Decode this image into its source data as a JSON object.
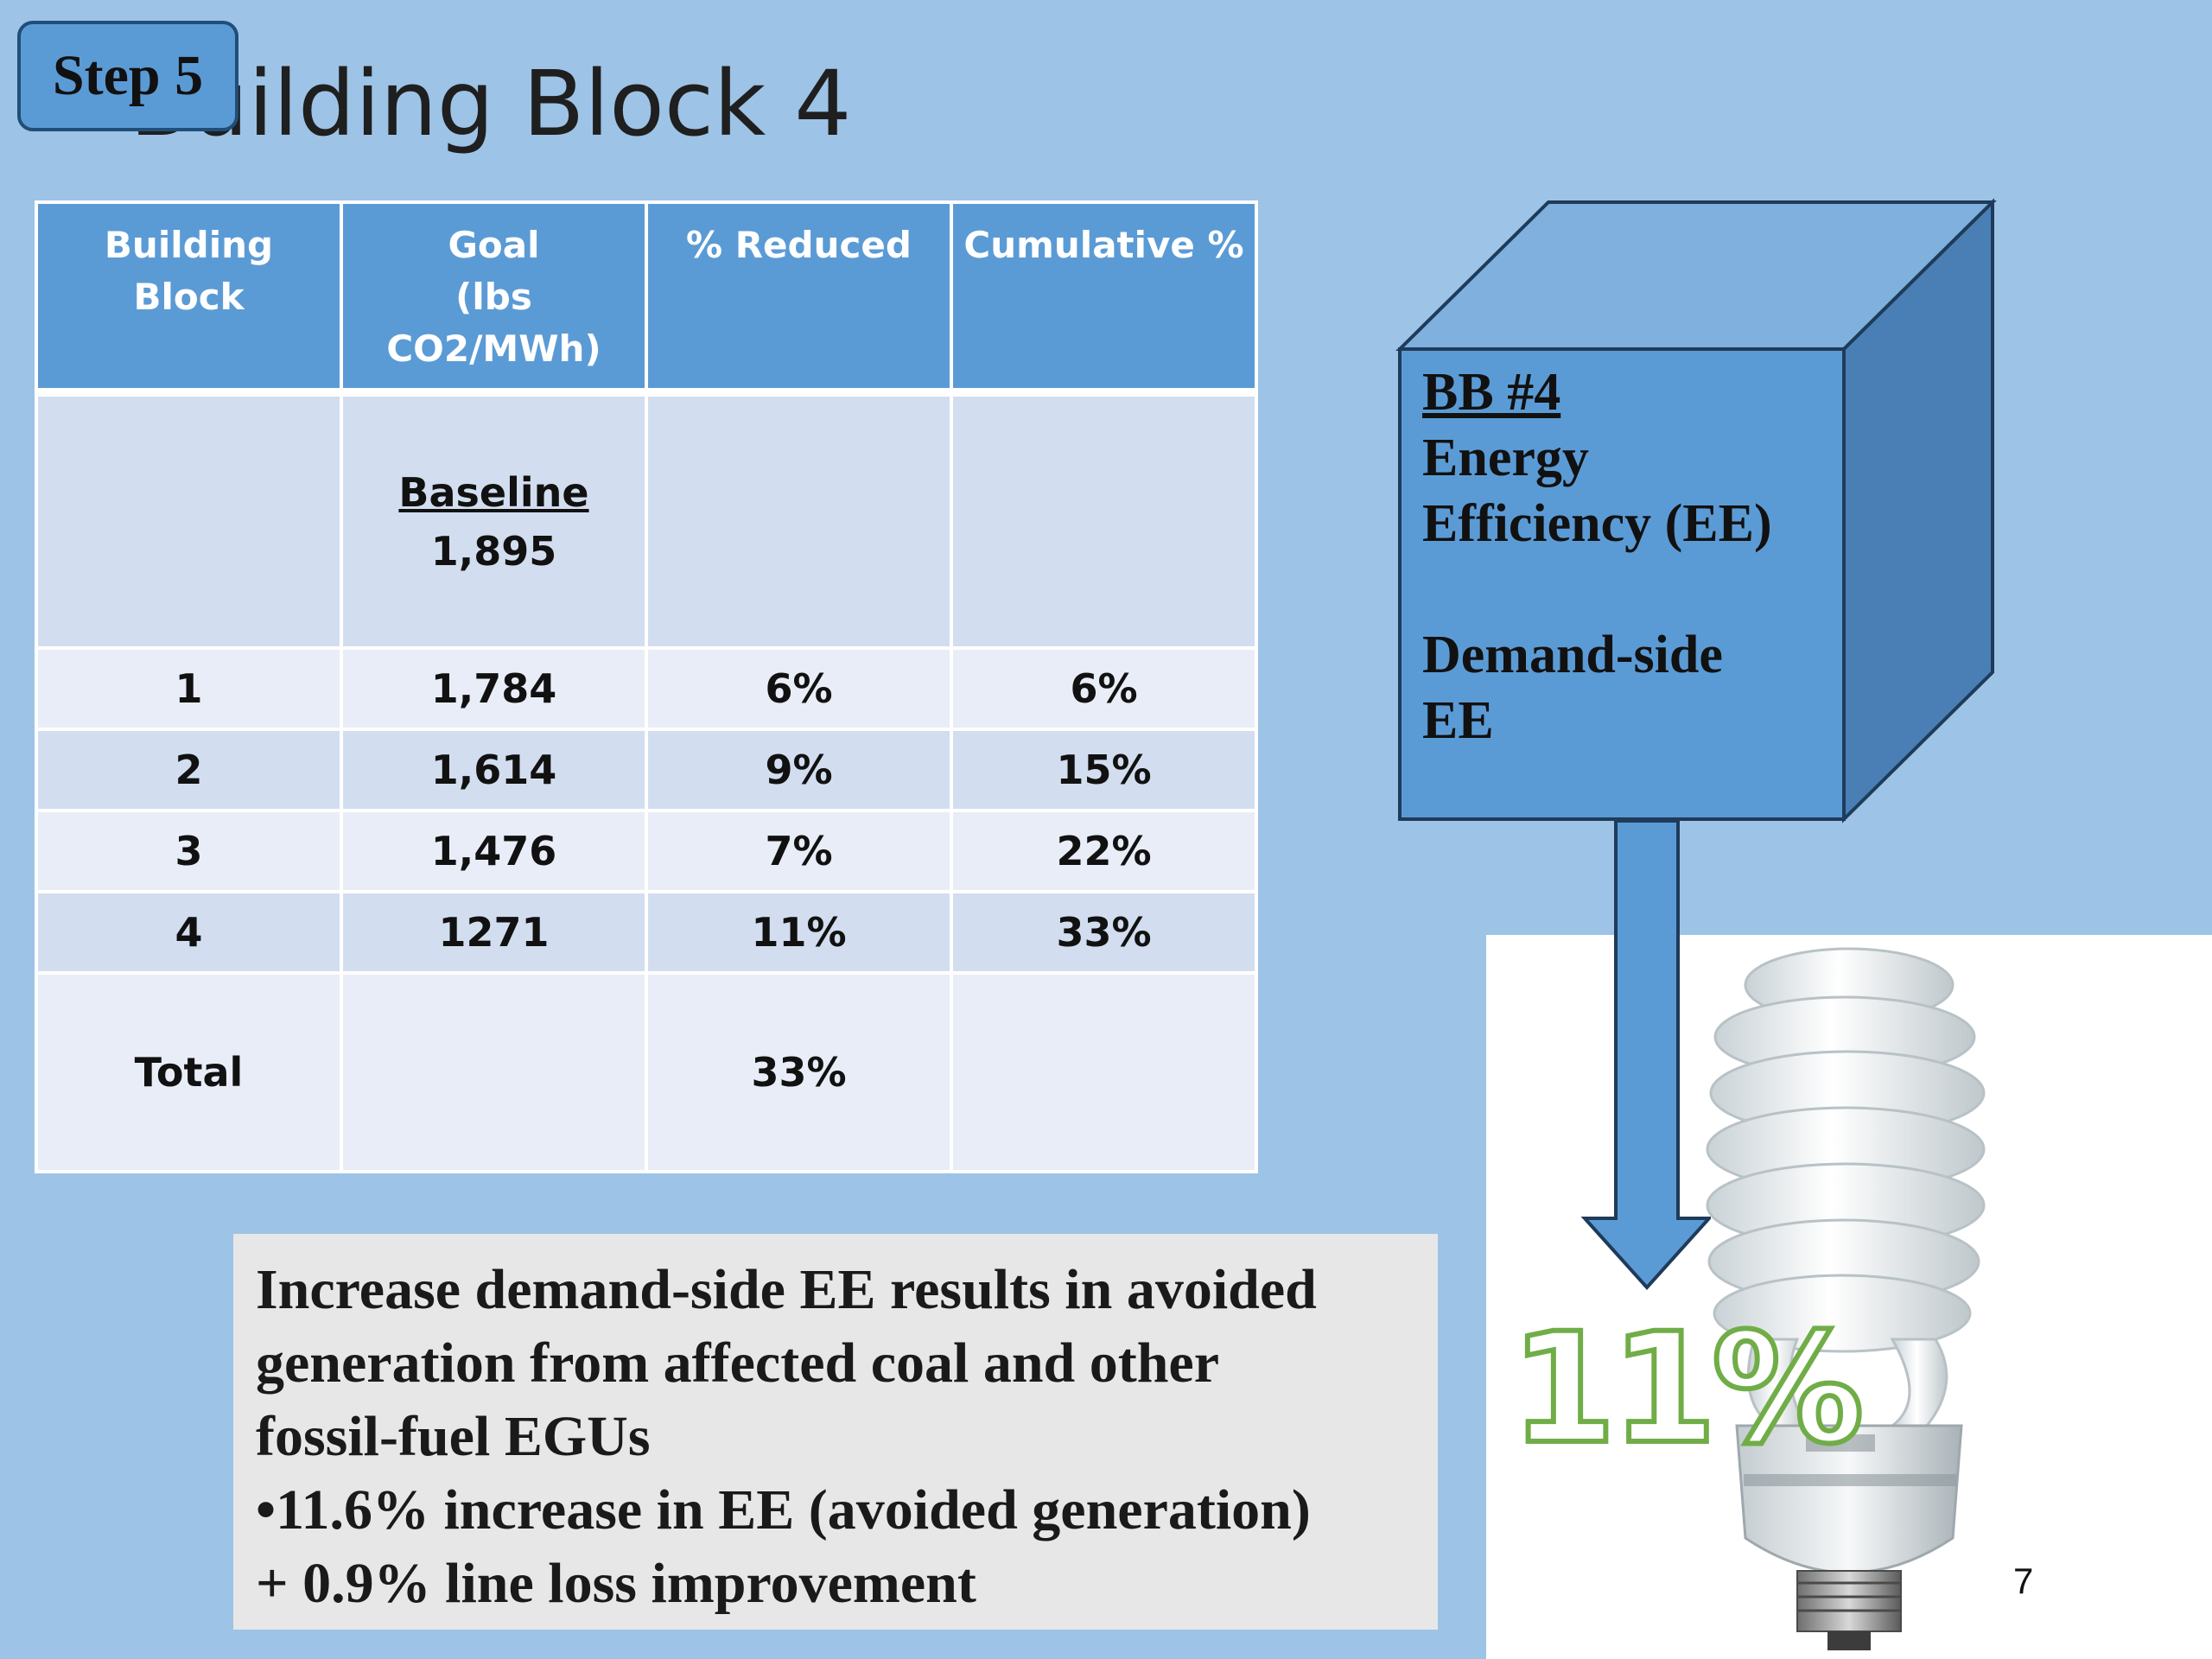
{
  "slide": {
    "title": "Building Block 4",
    "step_badge": "Step 5",
    "page_number": "7"
  },
  "table": {
    "headers": [
      [
        "Building Block"
      ],
      [
        "Goal",
        "(lbs",
        "CO2/MWh)"
      ],
      [
        "% Reduced"
      ],
      [
        "Cumulative %"
      ]
    ],
    "baseline": {
      "label": "Baseline",
      "value": "1,895"
    },
    "rows": [
      {
        "block": "1",
        "goal": "1,784",
        "reduced": "6%",
        "cumulative": "6%"
      },
      {
        "block": "2",
        "goal": "1,614",
        "reduced": "9%",
        "cumulative": "15%"
      },
      {
        "block": "3",
        "goal": "1,476",
        "reduced": "7%",
        "cumulative": "22%"
      },
      {
        "block": "4",
        "goal": "1271",
        "reduced": "11%",
        "cumulative": "33%"
      }
    ],
    "total": {
      "label": "Total",
      "reduced": "33%"
    }
  },
  "cube": {
    "title": "BB #4",
    "line1": "Energy",
    "line2": "Efficiency (EE)",
    "line3": "Demand-side",
    "line4": "EE"
  },
  "description": {
    "lines": [
      "Increase demand-side EE results in avoided",
      "generation from affected coal and other",
      "fossil-fuel EGUs",
      "•11.6% increase in EE (avoided generation)",
      "+ 0.9% line loss improvement"
    ]
  },
  "highlight": {
    "percent": "11%"
  },
  "colors": {
    "background": "#9dc3e6",
    "header_blue": "#5b9bd5",
    "cube_front": "#5b9bd5",
    "cube_top": "#7fb0de",
    "cube_side": "#4a7fb5",
    "percent_outline": "#70ad47"
  }
}
